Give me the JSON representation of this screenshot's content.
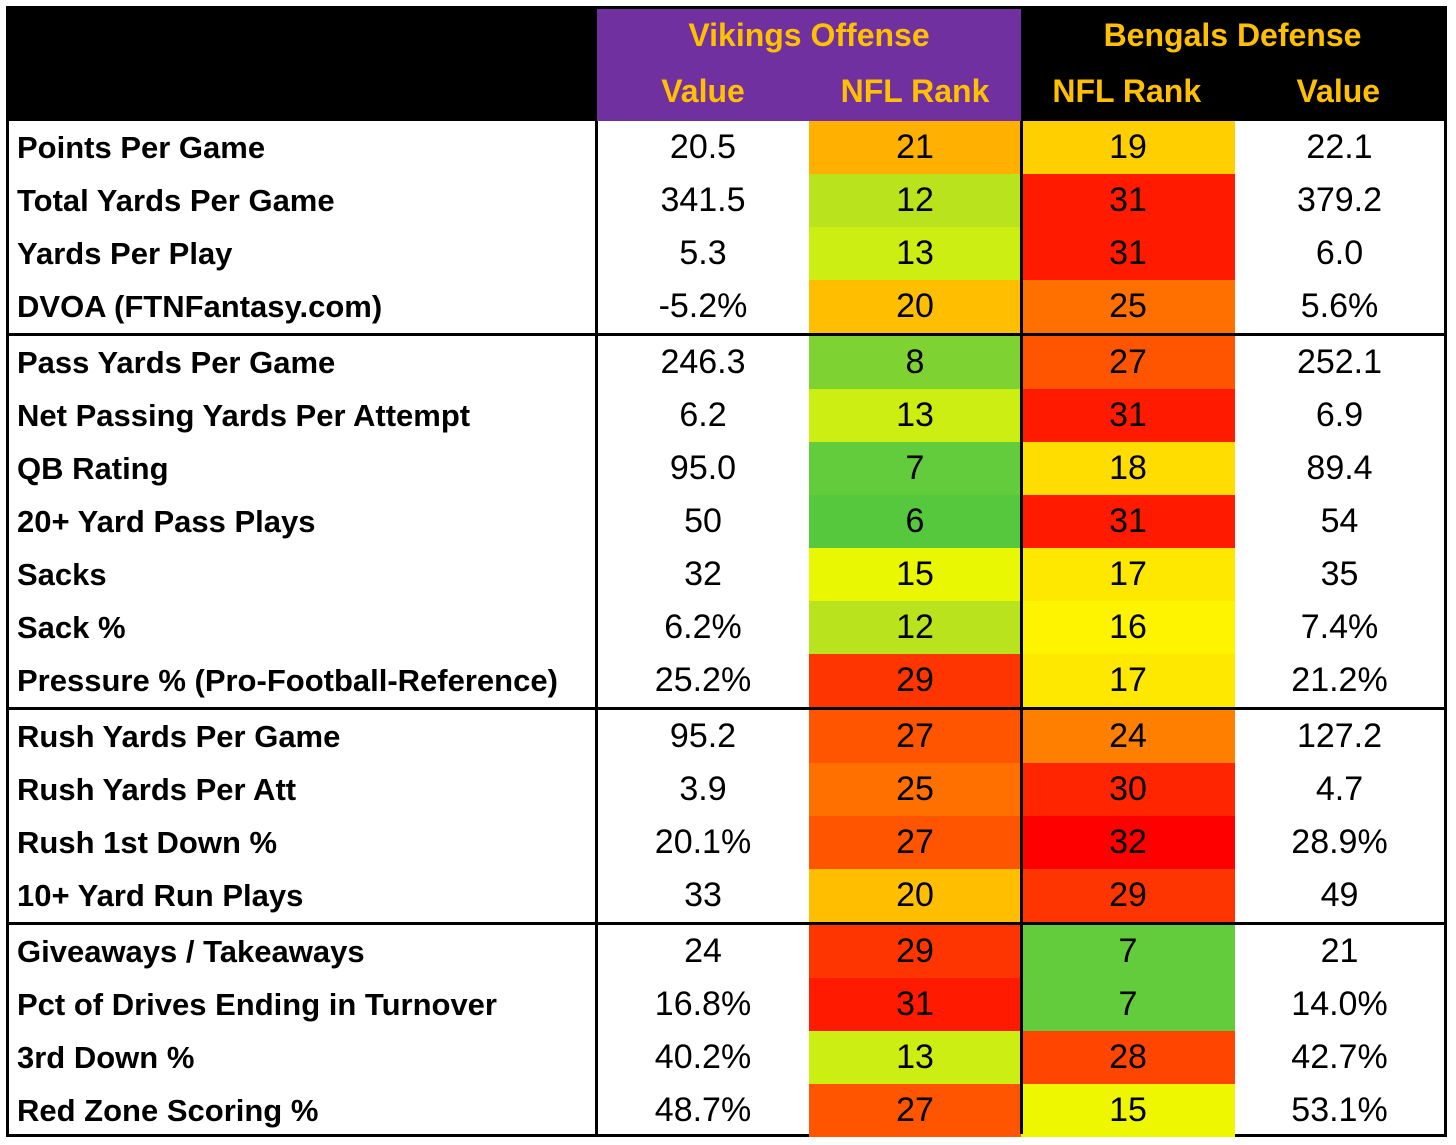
{
  "header": {
    "vikings_title": "Vikings Offense",
    "bengals_title": "Bengals Defense",
    "value_label": "Value",
    "rank_label": "NFL Rank"
  },
  "colors": {
    "header_purple": "#7030a0",
    "header_black": "#000000",
    "header_text": "#ffc000"
  },
  "groups": [
    [
      {
        "label": "Points Per Game",
        "off_value": "20.5",
        "off_rank": "21",
        "off_color": "#ffb000",
        "def_rank": "19",
        "def_color": "#ffcf00",
        "def_value": "22.1"
      },
      {
        "label": "Total Yards Per Game",
        "off_value": "341.5",
        "off_rank": "12",
        "off_color": "#b9e41d",
        "def_rank": "31",
        "def_color": "#ff1a00",
        "def_value": "379.2"
      },
      {
        "label": "Yards Per Play",
        "off_value": "5.3",
        "off_rank": "13",
        "off_color": "#cdee13",
        "def_rank": "31",
        "def_color": "#ff1a00",
        "def_value": "6.0"
      },
      {
        "label": "DVOA (FTNFantasy.com)",
        "off_value": "-5.2%",
        "off_rank": "20",
        "off_color": "#ffbf00",
        "def_rank": "25",
        "def_color": "#ff7000",
        "def_value": "5.6%"
      }
    ],
    [
      {
        "label": "Pass Yards Per Game",
        "off_value": "246.3",
        "off_rank": "8",
        "off_color": "#7ed332",
        "def_rank": "27",
        "def_color": "#ff5500",
        "def_value": "252.1"
      },
      {
        "label": "Net Passing Yards Per Attempt",
        "off_value": "6.2",
        "off_rank": "13",
        "off_color": "#cdee13",
        "def_rank": "31",
        "def_color": "#ff1a00",
        "def_value": "6.9"
      },
      {
        "label": "QB Rating",
        "off_value": "95.0",
        "off_rank": "7",
        "off_color": "#62cc3c",
        "def_rank": "18",
        "def_color": "#ffdd00",
        "def_value": "89.4"
      },
      {
        "label": "20+ Yard Pass Plays",
        "off_value": "50",
        "off_rank": "6",
        "off_color": "#55c83e",
        "def_rank": "31",
        "def_color": "#ff1a00",
        "def_value": "54"
      },
      {
        "label": "Sacks",
        "off_value": "32",
        "off_rank": "15",
        "off_color": "#eaf702",
        "def_rank": "17",
        "def_color": "#ffe800",
        "def_value": "35"
      },
      {
        "label": "Sack %",
        "off_value": "6.2%",
        "off_rank": "12",
        "off_color": "#b9e41d",
        "def_rank": "16",
        "def_color": "#fff400",
        "def_value": "7.4%"
      },
      {
        "label": "Pressure % (Pro-Football-Reference)",
        "off_value": "25.2%",
        "off_rank": "29",
        "off_color": "#ff3500",
        "def_rank": "17",
        "def_color": "#ffe800",
        "def_value": "21.2%"
      }
    ],
    [
      {
        "label": "Rush Yards Per Game",
        "off_value": "95.2",
        "off_rank": "27",
        "off_color": "#ff5500",
        "def_rank": "24",
        "def_color": "#ff8000",
        "def_value": "127.2"
      },
      {
        "label": "Rush Yards Per Att",
        "off_value": "3.9",
        "off_rank": "25",
        "off_color": "#ff7000",
        "def_rank": "30",
        "def_color": "#ff2500",
        "def_value": "4.7"
      },
      {
        "label": "Rush 1st Down %",
        "off_value": "20.1%",
        "off_rank": "27",
        "off_color": "#ff5500",
        "def_rank": "32",
        "def_color": "#ff0000",
        "def_value": "28.9%"
      },
      {
        "label": "10+ Yard Run Plays",
        "off_value": "33",
        "off_rank": "20",
        "off_color": "#ffbf00",
        "def_rank": "29",
        "def_color": "#ff3500",
        "def_value": "49"
      }
    ],
    [
      {
        "label": "Giveaways / Takeaways",
        "off_value": "24",
        "off_rank": "29",
        "off_color": "#ff3500",
        "def_rank": "7",
        "def_color": "#62cc3c",
        "def_value": "21"
      },
      {
        "label": "Pct of Drives Ending in Turnover",
        "off_value": "16.8%",
        "off_rank": "31",
        "off_color": "#ff1a00",
        "def_rank": "7",
        "def_color": "#62cc3c",
        "def_value": "14.0%"
      },
      {
        "label": "3rd Down %",
        "off_value": "40.2%",
        "off_rank": "13",
        "off_color": "#cdee13",
        "def_rank": "28",
        "def_color": "#ff4500",
        "def_value": "42.7%"
      },
      {
        "label": "Red Zone Scoring %",
        "off_value": "48.7%",
        "off_rank": "27",
        "off_color": "#ff5500",
        "def_rank": "15",
        "def_color": "#eef700",
        "def_value": "53.1%"
      }
    ]
  ]
}
